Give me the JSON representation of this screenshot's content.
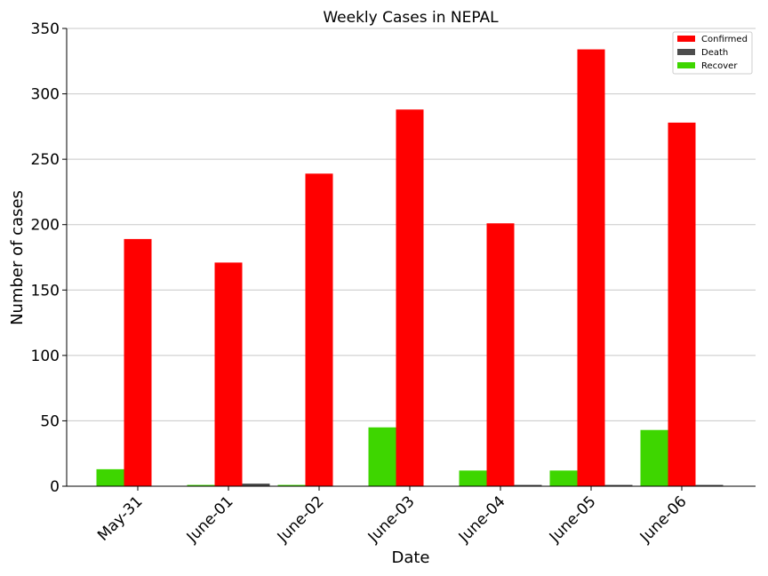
{
  "chart_data": {
    "type": "bar",
    "title": "Weekly Cases in NEPAL",
    "xlabel": "Date",
    "ylabel": "Number of cases",
    "categories": [
      "May-31",
      "June-01",
      "June-02",
      "June-03",
      "June-04",
      "June-05",
      "June-06"
    ],
    "series": [
      {
        "name": "Recover",
        "color": "#3ed600",
        "values": [
          13,
          1,
          1,
          45,
          12,
          12,
          43
        ]
      },
      {
        "name": "Confirmed",
        "color": "#ff0000",
        "values": [
          189,
          171,
          239,
          288,
          201,
          334,
          278
        ]
      },
      {
        "name": "Death",
        "color": "#4d4d4d",
        "values": [
          0,
          2,
          0,
          0,
          1,
          1,
          1
        ]
      }
    ],
    "legend_order": [
      "Confirmed",
      "Death",
      "Recover"
    ],
    "legend_position": "top-right",
    "ylim": [
      0,
      350
    ],
    "yticks": [
      0,
      50,
      100,
      150,
      200,
      250,
      300,
      350
    ],
    "grid": "y"
  }
}
